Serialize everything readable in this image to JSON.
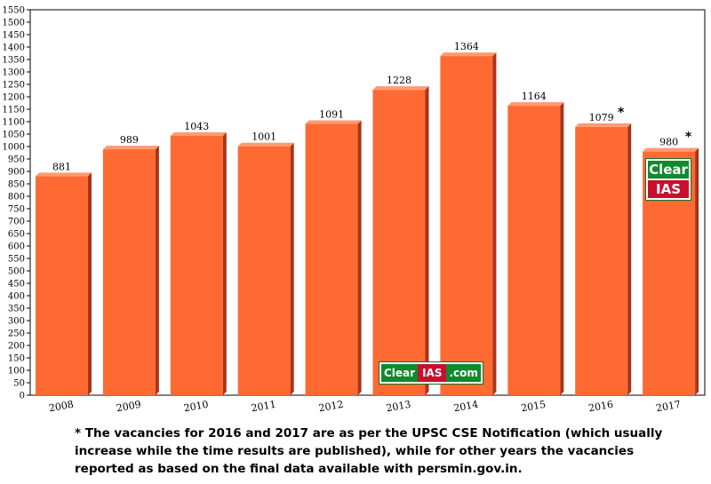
{
  "chart_data": {
    "type": "bar",
    "title": "",
    "xlabel": "",
    "ylabel": "",
    "categories": [
      "2008",
      "2009",
      "2010",
      "2011",
      "2012",
      "2013",
      "2014",
      "2015",
      "2016",
      "2017"
    ],
    "values": [
      881,
      989,
      1043,
      1001,
      1091,
      1228,
      1364,
      1164,
      1079,
      980
    ],
    "data_labels": [
      "881",
      "989",
      "1043",
      "1001",
      "1091",
      "1228",
      "1364",
      "1164",
      "1079",
      "980"
    ],
    "starred": [
      false,
      false,
      false,
      false,
      false,
      false,
      false,
      false,
      true,
      true
    ],
    "star_mark": "*",
    "ylim": [
      0,
      1550
    ],
    "ytick_step": 50,
    "grid": false,
    "bar_color": "#ff6a33",
    "bar_side_color": "#a8341a",
    "bar_top_color": "#ff9a70"
  },
  "footnote": "* The vacancies for 2016 and 2017 are as per the UPSC CSE Notification (which usually increase while the time results are published), while for other years the vacancies reported as based on the final data available with persmin.gov.in.",
  "logos": {
    "stack_clear": "Clear",
    "stack_ias": "IAS",
    "inline_clear": "Clear",
    "inline_ias": "IAS",
    "inline_com": ".com"
  }
}
